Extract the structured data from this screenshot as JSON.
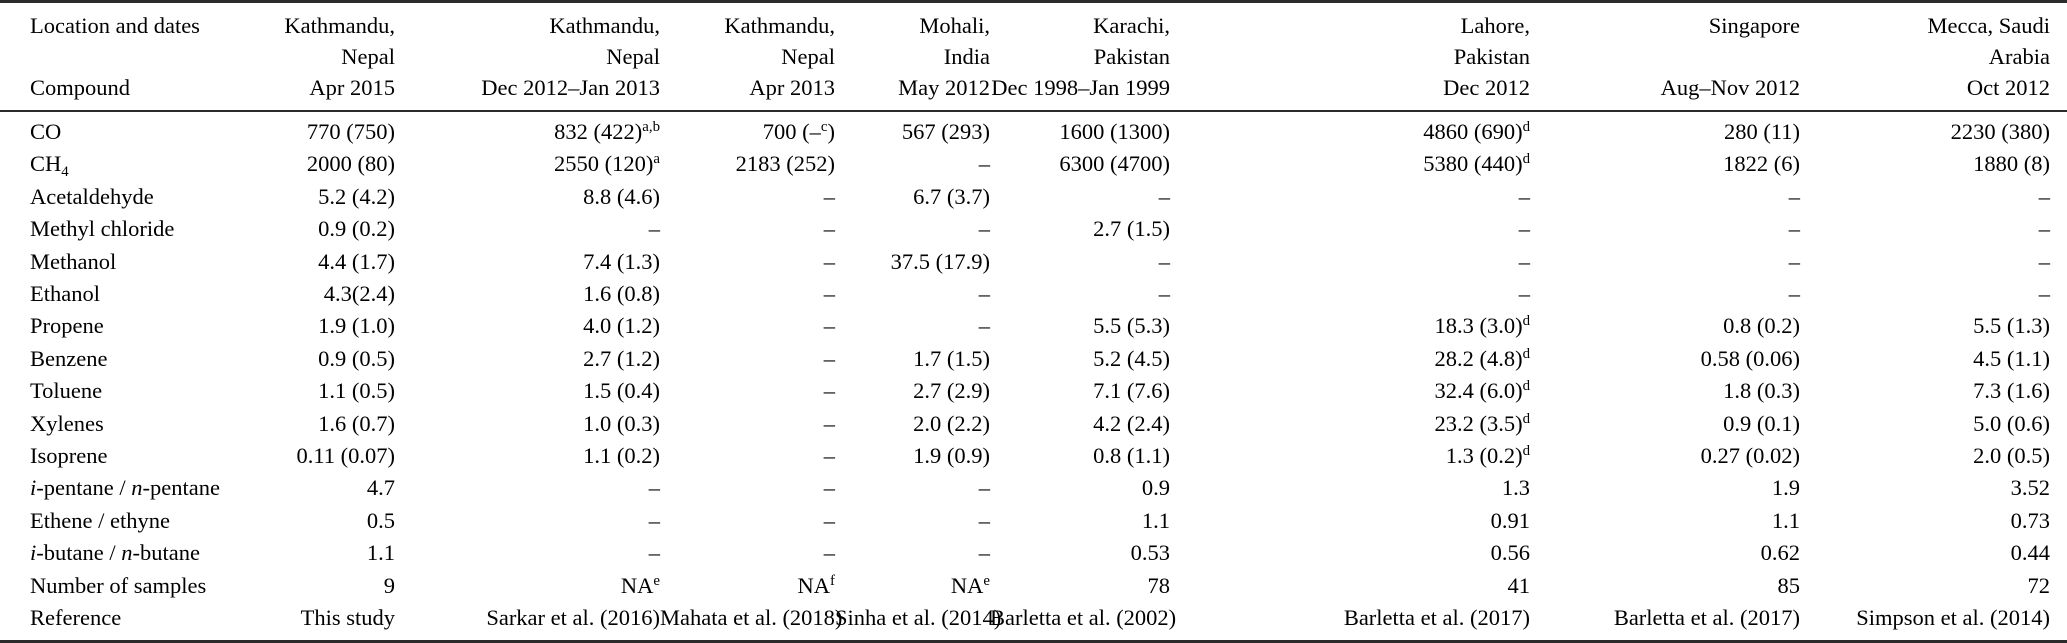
{
  "colors": {
    "background": "#ffffff",
    "text": "#000000",
    "rule": "#2b2b2b"
  },
  "table": {
    "corner": {
      "top_label": "Location and dates",
      "bottom_label": "Compound"
    },
    "columns": [
      {
        "header_lines": [
          "Kathmandu,",
          "Nepal",
          "Apr 2015"
        ]
      },
      {
        "header_lines": [
          "Kathmandu,",
          "Nepal",
          "Dec 2012–Jan 2013"
        ]
      },
      {
        "header_lines": [
          "Kathmandu,",
          "Nepal",
          "Apr 2013"
        ]
      },
      {
        "header_lines": [
          "Mohali,",
          "India",
          "May 2012"
        ]
      },
      {
        "header_lines": [
          "Karachi,",
          "Pakistan",
          "Dec 1998–Jan 1999"
        ]
      },
      {
        "header_lines": [
          "Lahore,",
          "Pakistan",
          "Dec 2012"
        ]
      },
      {
        "header_lines": [
          "Singapore",
          "",
          "Aug–Nov 2012"
        ]
      },
      {
        "header_lines": [
          "Mecca, Saudi",
          "Arabia",
          "Oct 2012"
        ]
      }
    ],
    "rows": [
      {
        "compound": "CO",
        "values": [
          "770 (750)",
          "832 (422)^{a,b}",
          "700 (–^{c})",
          "567 (293)",
          "1600 (1300)",
          "4860 (690)^{d}",
          "280 (11)",
          "2230 (380)"
        ]
      },
      {
        "compound": "CH_{4}",
        "values": [
          "2000 (80)",
          "2550 (120)^{a}",
          "2183 (252)",
          "–",
          "6300 (4700)",
          "5380 (440)^{d}",
          "1822 (6)",
          "1880 (8)"
        ]
      },
      {
        "compound": "Acetaldehyde",
        "values": [
          "5.2 (4.2)",
          "8.8 (4.6)",
          "–",
          "6.7 (3.7)",
          "–",
          "–",
          "–",
          "–"
        ]
      },
      {
        "compound": "Methyl chloride",
        "values": [
          "0.9 (0.2)",
          "–",
          "–",
          "–",
          "2.7 (1.5)",
          "–",
          "–",
          "–"
        ]
      },
      {
        "compound": "Methanol",
        "values": [
          "4.4 (1.7)",
          "7.4 (1.3)",
          "–",
          "37.5 (17.9)",
          "–",
          "–",
          "–",
          "–"
        ]
      },
      {
        "compound": "Ethanol",
        "values": [
          "4.3(2.4)",
          "1.6 (0.8)",
          "–",
          "–",
          "–",
          "–",
          "–",
          "–"
        ]
      },
      {
        "compound": "Propene",
        "values": [
          "1.9 (1.0)",
          "4.0 (1.2)",
          "–",
          "–",
          "5.5 (5.3)",
          "18.3 (3.0)^{d}",
          "0.8 (0.2)",
          "5.5 (1.3)"
        ]
      },
      {
        "compound": "Benzene",
        "values": [
          "0.9 (0.5)",
          "2.7 (1.2)",
          "–",
          "1.7 (1.5)",
          "5.2 (4.5)",
          "28.2 (4.8)^{d}",
          "0.58 (0.06)",
          "4.5 (1.1)"
        ]
      },
      {
        "compound": "Toluene",
        "values": [
          "1.1 (0.5)",
          "1.5 (0.4)",
          "–",
          "2.7 (2.9)",
          "7.1 (7.6)",
          "32.4 (6.0)^{d}",
          "1.8 (0.3)",
          "7.3 (1.6)"
        ]
      },
      {
        "compound": "Xylenes",
        "values": [
          "1.6 (0.7)",
          "1.0 (0.3)",
          "–",
          "2.0 (2.2)",
          "4.2 (2.4)",
          "23.2 (3.5)^{d}",
          "0.9 (0.1)",
          "5.0 (0.6)"
        ]
      },
      {
        "compound": "Isoprene",
        "values": [
          "0.11 (0.07)",
          "1.1 (0.2)",
          "–",
          "1.9 (0.9)",
          "0.8 (1.1)",
          "1.3 (0.2)^{d}",
          "0.27 (0.02)",
          "2.0 (0.5)"
        ]
      },
      {
        "compound": "*i*-pentane / *n*-pentane",
        "values": [
          "4.7",
          "–",
          "–",
          "–",
          "0.9",
          "1.3",
          "1.9",
          "3.52"
        ]
      },
      {
        "compound": "Ethene / ethyne",
        "values": [
          "0.5",
          "–",
          "–",
          "–",
          "1.1",
          "0.91",
          "1.1",
          "0.73"
        ]
      },
      {
        "compound": "*i*-butane / *n*-butane",
        "values": [
          "1.1",
          "–",
          "–",
          "–",
          "0.53",
          "0.56",
          "0.62",
          "0.44"
        ]
      },
      {
        "compound": "Number of samples",
        "values": [
          "9",
          "NA^{e}",
          "NA^{f}",
          "NA^{e}",
          "78",
          "41",
          "85",
          "72"
        ]
      },
      {
        "compound": "Reference",
        "values": [
          "This study",
          "Sarkar et al. (2016)",
          "Mahata et al. (2018)",
          "Sinha et al. (2014)",
          "Barletta et al. (2002)",
          "Barletta et al. (2017)",
          "Barletta et al. (2017)",
          "Simpson et al. (2014)"
        ]
      }
    ]
  }
}
